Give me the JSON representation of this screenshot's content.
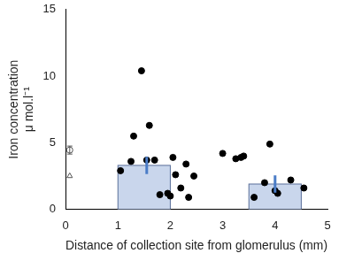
{
  "chart_data": {
    "type": "scatter",
    "x_label": "Distance of collection site from glomerulus (mm)",
    "y_label": [
      "Iron concentration",
      "μ mol.l⁻¹"
    ],
    "xlim": [
      0,
      5
    ],
    "xticks": [
      0,
      1,
      2,
      3,
      4,
      5
    ],
    "ylim": [
      0,
      15
    ],
    "yticks": [
      0,
      5,
      10,
      15
    ],
    "grid": false,
    "bars": [
      {
        "x_start": 1,
        "x_end": 2,
        "value": 3.3,
        "error": 0.65,
        "x_error": 1.55,
        "color": "#c9d6ec",
        "error_color": "#4a7cc7"
      },
      {
        "x_start": 3.5,
        "x_end": 4.5,
        "value": 1.9,
        "error": 0.65,
        "x_error": 4.0,
        "color": "#c9d6ec",
        "error_color": "#4a7cc7"
      }
    ],
    "series": [
      {
        "color": "#000000",
        "marker": "circle",
        "x": [
          1.05,
          1.25,
          1.3,
          1.45,
          1.55,
          1.6,
          1.7,
          1.8,
          1.95,
          2.0,
          2.05,
          2.1,
          2.2,
          2.3,
          2.35,
          2.45,
          3.0,
          3.25,
          3.35,
          3.4,
          3.6,
          3.8,
          3.9,
          4.0,
          4.05,
          4.3,
          4.55
        ],
        "values": [
          2.9,
          3.6,
          5.5,
          10.4,
          3.7,
          6.3,
          3.7,
          1.1,
          1.2,
          1.0,
          3.9,
          2.6,
          1.6,
          3.4,
          0.9,
          2.5,
          4.2,
          3.8,
          3.9,
          4.0,
          0.9,
          2.0,
          4.9,
          1.4,
          1.2,
          2.2,
          1.6
        ]
      },
      {
        "color": "#555555",
        "marker": "open_circle",
        "x": [
          0.08
        ],
        "values": [
          4.45
        ],
        "errors": [
          0.3
        ]
      },
      {
        "color": "#555555",
        "marker": "open_triangle",
        "x": [
          0.08
        ],
        "values": [
          2.5
        ]
      }
    ]
  }
}
